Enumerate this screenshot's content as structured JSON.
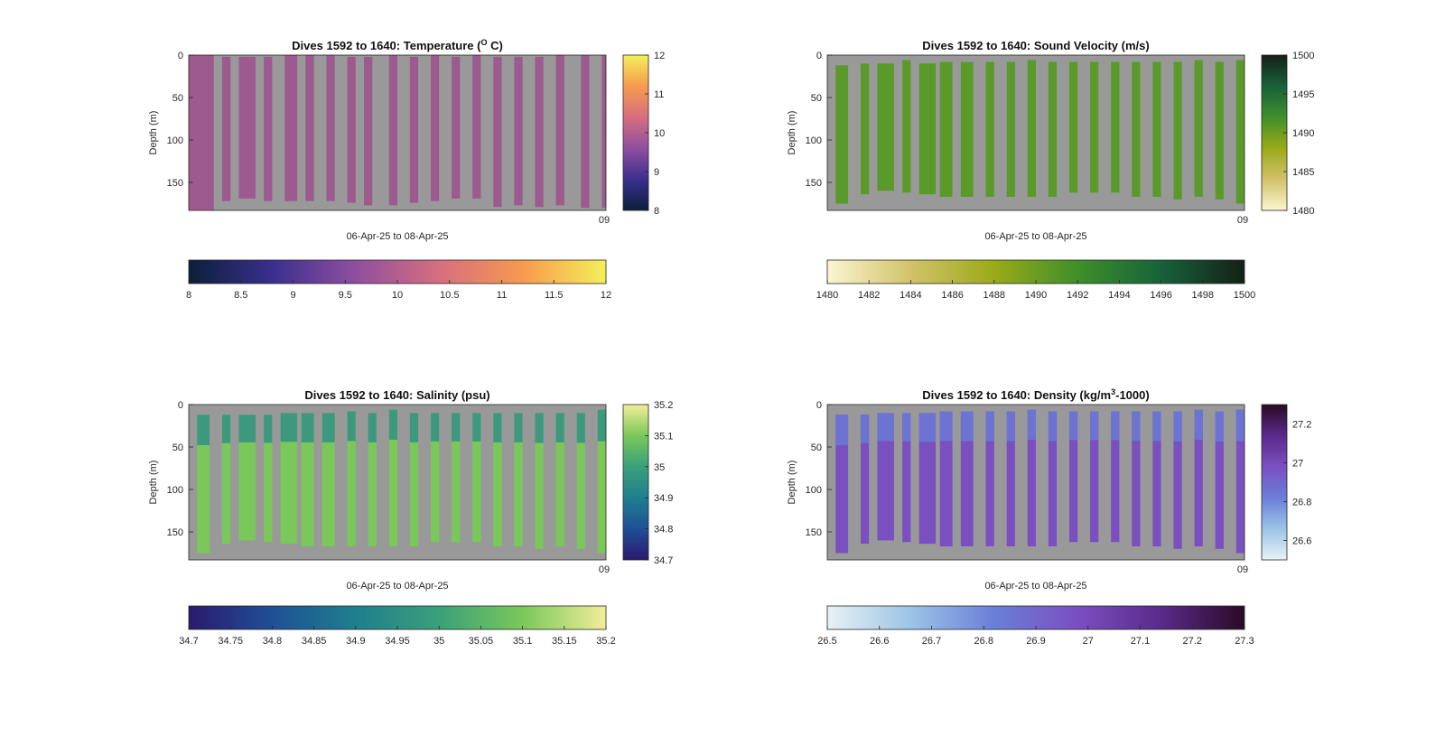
{
  "chart_data": [
    {
      "type": "heatmap",
      "title": {
        "main": "Dives 1592 to 1640: Temperature (",
        "sup": "O",
        "tail": " C)"
      },
      "xlabel": "06-Apr-25 to 08-Apr-25",
      "ylabel": "Depth (m)",
      "y_ticks": [
        "0",
        "50",
        "100",
        "150"
      ],
      "ylim": [
        0,
        183
      ],
      "x_end_tick": "09",
      "background_color": "#999999",
      "profile_color": "#9c5a8e",
      "profiles": [
        {
          "x0": 0.0,
          "x1": 0.06,
          "top": 0,
          "bottom": 183
        },
        {
          "x0": 0.08,
          "x1": 0.1,
          "top": 2,
          "bottom": 172
        },
        {
          "x0": 0.12,
          "x1": 0.16,
          "top": 2,
          "bottom": 169
        },
        {
          "x0": 0.18,
          "x1": 0.2,
          "top": 2,
          "bottom": 172
        },
        {
          "x0": 0.23,
          "x1": 0.26,
          "top": 0,
          "bottom": 172
        },
        {
          "x0": 0.28,
          "x1": 0.3,
          "top": 0,
          "bottom": 172
        },
        {
          "x0": 0.33,
          "x1": 0.35,
          "top": 0,
          "bottom": 172
        },
        {
          "x0": 0.38,
          "x1": 0.4,
          "top": 2,
          "bottom": 174
        },
        {
          "x0": 0.42,
          "x1": 0.44,
          "top": 2,
          "bottom": 177
        },
        {
          "x0": 0.48,
          "x1": 0.5,
          "top": 0,
          "bottom": 177
        },
        {
          "x0": 0.53,
          "x1": 0.55,
          "top": 2,
          "bottom": 174
        },
        {
          "x0": 0.58,
          "x1": 0.6,
          "top": 0,
          "bottom": 172
        },
        {
          "x0": 0.63,
          "x1": 0.65,
          "top": 2,
          "bottom": 169
        },
        {
          "x0": 0.68,
          "x1": 0.7,
          "top": 0,
          "bottom": 169
        },
        {
          "x0": 0.73,
          "x1": 0.75,
          "top": 2,
          "bottom": 179
        },
        {
          "x0": 0.78,
          "x1": 0.8,
          "top": 2,
          "bottom": 177
        },
        {
          "x0": 0.83,
          "x1": 0.85,
          "top": 2,
          "bottom": 179
        },
        {
          "x0": 0.88,
          "x1": 0.9,
          "top": 0,
          "bottom": 177
        },
        {
          "x0": 0.94,
          "x1": 0.96,
          "top": 0,
          "bottom": 180
        },
        {
          "x0": 0.99,
          "x1": 1.0,
          "top": 0,
          "bottom": 180
        }
      ],
      "colorbar_right": {
        "min": 8,
        "max": 12,
        "ticks": [
          "8",
          "9",
          "10",
          "11",
          "12"
        ],
        "tick_values": [
          8,
          9,
          10,
          11,
          12
        ]
      },
      "colorbar_bottom": {
        "min": 8,
        "max": 12,
        "ticks": [
          "8",
          "8.5",
          "9",
          "9.5",
          "10",
          "10.5",
          "11",
          "11.5",
          "12"
        ],
        "tick_values": [
          8,
          8.5,
          9,
          9.5,
          10,
          10.5,
          11,
          11.5,
          12
        ]
      },
      "colormap": [
        "#0b1f3a",
        "#3a2f8e",
        "#8f4f9f",
        "#d66e7f",
        "#f79a4e",
        "#f4f05a"
      ]
    },
    {
      "type": "heatmap",
      "title": {
        "main": "Dives 1592 to 1640: Sound Velocity (m/s)",
        "sup": "",
        "tail": ""
      },
      "xlabel": "06-Apr-25 to 08-Apr-25",
      "ylabel": "Depth (m)",
      "y_ticks": [
        "0",
        "50",
        "100",
        "150"
      ],
      "ylim": [
        0,
        183
      ],
      "x_end_tick": "09",
      "background_color": "#999999",
      "profile_color": "#5a9a2a",
      "profiles": [
        {
          "x0": 0.02,
          "x1": 0.05,
          "top": 12,
          "bottom": 175
        },
        {
          "x0": 0.08,
          "x1": 0.1,
          "top": 10,
          "bottom": 164
        },
        {
          "x0": 0.12,
          "x1": 0.16,
          "top": 10,
          "bottom": 160
        },
        {
          "x0": 0.18,
          "x1": 0.2,
          "top": 6,
          "bottom": 162
        },
        {
          "x0": 0.22,
          "x1": 0.26,
          "top": 10,
          "bottom": 164
        },
        {
          "x0": 0.27,
          "x1": 0.3,
          "top": 8,
          "bottom": 167
        },
        {
          "x0": 0.32,
          "x1": 0.35,
          "top": 8,
          "bottom": 167
        },
        {
          "x0": 0.38,
          "x1": 0.4,
          "top": 8,
          "bottom": 167
        },
        {
          "x0": 0.43,
          "x1": 0.45,
          "top": 8,
          "bottom": 167
        },
        {
          "x0": 0.48,
          "x1": 0.5,
          "top": 6,
          "bottom": 167
        },
        {
          "x0": 0.53,
          "x1": 0.55,
          "top": 8,
          "bottom": 167
        },
        {
          "x0": 0.58,
          "x1": 0.6,
          "top": 8,
          "bottom": 162
        },
        {
          "x0": 0.63,
          "x1": 0.65,
          "top": 8,
          "bottom": 162
        },
        {
          "x0": 0.68,
          "x1": 0.7,
          "top": 8,
          "bottom": 162
        },
        {
          "x0": 0.73,
          "x1": 0.75,
          "top": 8,
          "bottom": 167
        },
        {
          "x0": 0.78,
          "x1": 0.8,
          "top": 8,
          "bottom": 167
        },
        {
          "x0": 0.83,
          "x1": 0.85,
          "top": 8,
          "bottom": 170
        },
        {
          "x0": 0.88,
          "x1": 0.9,
          "top": 6,
          "bottom": 167
        },
        {
          "x0": 0.93,
          "x1": 0.95,
          "top": 8,
          "bottom": 170
        },
        {
          "x0": 0.98,
          "x1": 1.0,
          "top": 6,
          "bottom": 175
        }
      ],
      "colorbar_right": {
        "min": 1480,
        "max": 1500,
        "ticks": [
          "1480",
          "1485",
          "1490",
          "1495",
          "1500"
        ],
        "tick_values": [
          1480,
          1485,
          1490,
          1495,
          1500
        ]
      },
      "colorbar_bottom": {
        "min": 1480,
        "max": 1500,
        "ticks": [
          "1480",
          "1482",
          "1484",
          "1486",
          "1488",
          "1490",
          "1492",
          "1494",
          "1496",
          "1498",
          "1500"
        ],
        "tick_values": [
          1480,
          1482,
          1484,
          1486,
          1488,
          1490,
          1492,
          1494,
          1496,
          1498,
          1500
        ]
      },
      "colormap": [
        "#fbf5d2",
        "#d2c26a",
        "#9aaa18",
        "#3f8f2a",
        "#17623a",
        "#142016"
      ]
    },
    {
      "type": "heatmap",
      "title": {
        "main": "Dives 1592 to 1640: Salinity (psu)",
        "sup": "",
        "tail": ""
      },
      "xlabel": "06-Apr-25 to 08-Apr-25",
      "ylabel": "Depth (m)",
      "y_ticks": [
        "0",
        "50",
        "100",
        "150"
      ],
      "ylim": [
        0,
        183
      ],
      "x_end_tick": "09",
      "background_color": "#999999",
      "profile_color": "#7ac85a",
      "profile_top_color": "#2a8a8a",
      "profiles": [
        {
          "x0": 0.02,
          "x1": 0.05,
          "top": 12,
          "bottom": 175
        },
        {
          "x0": 0.08,
          "x1": 0.1,
          "top": 12,
          "bottom": 164
        },
        {
          "x0": 0.12,
          "x1": 0.16,
          "top": 12,
          "bottom": 160
        },
        {
          "x0": 0.18,
          "x1": 0.2,
          "top": 12,
          "bottom": 162
        },
        {
          "x0": 0.22,
          "x1": 0.26,
          "top": 10,
          "bottom": 164
        },
        {
          "x0": 0.27,
          "x1": 0.3,
          "top": 10,
          "bottom": 167
        },
        {
          "x0": 0.32,
          "x1": 0.35,
          "top": 10,
          "bottom": 167
        },
        {
          "x0": 0.38,
          "x1": 0.4,
          "top": 8,
          "bottom": 167
        },
        {
          "x0": 0.43,
          "x1": 0.45,
          "top": 10,
          "bottom": 167
        },
        {
          "x0": 0.48,
          "x1": 0.5,
          "top": 6,
          "bottom": 167
        },
        {
          "x0": 0.53,
          "x1": 0.55,
          "top": 10,
          "bottom": 167
        },
        {
          "x0": 0.58,
          "x1": 0.6,
          "top": 10,
          "bottom": 162
        },
        {
          "x0": 0.63,
          "x1": 0.65,
          "top": 10,
          "bottom": 162
        },
        {
          "x0": 0.68,
          "x1": 0.7,
          "top": 10,
          "bottom": 162
        },
        {
          "x0": 0.73,
          "x1": 0.75,
          "top": 10,
          "bottom": 167
        },
        {
          "x0": 0.78,
          "x1": 0.8,
          "top": 10,
          "bottom": 167
        },
        {
          "x0": 0.83,
          "x1": 0.85,
          "top": 10,
          "bottom": 170
        },
        {
          "x0": 0.88,
          "x1": 0.9,
          "top": 10,
          "bottom": 167
        },
        {
          "x0": 0.93,
          "x1": 0.95,
          "top": 10,
          "bottom": 170
        },
        {
          "x0": 0.98,
          "x1": 1.0,
          "top": 6,
          "bottom": 175
        }
      ],
      "colorbar_right": {
        "min": 34.7,
        "max": 35.2,
        "ticks": [
          "34.7",
          "34.8",
          "34.9",
          "35",
          "35.1",
          "35.2"
        ],
        "tick_values": [
          34.7,
          34.8,
          34.9,
          35.0,
          35.1,
          35.2
        ]
      },
      "colorbar_bottom": {
        "min": 34.7,
        "max": 35.2,
        "ticks": [
          "34.7",
          "34.75",
          "34.8",
          "34.85",
          "34.9",
          "34.95",
          "35",
          "35.05",
          "35.1",
          "35.15",
          "35.2"
        ],
        "tick_values": [
          34.7,
          34.75,
          34.8,
          34.85,
          34.9,
          34.95,
          35.0,
          35.05,
          35.1,
          35.15,
          35.2
        ]
      },
      "colormap": [
        "#2a1a6e",
        "#1f4f96",
        "#1f7f8e",
        "#3aa07a",
        "#7ac85a",
        "#f2ee98"
      ]
    },
    {
      "type": "heatmap",
      "title": {
        "main": "Dives 1592 to 1640: Density (kg/m",
        "sup": "3",
        "tail": "-1000)"
      },
      "xlabel": "06-Apr-25 to 08-Apr-25",
      "ylabel": "Depth (m)",
      "y_ticks": [
        "0",
        "50",
        "100",
        "150"
      ],
      "ylim": [
        0,
        183
      ],
      "x_end_tick": "09",
      "background_color": "#999999",
      "profile_color": "#7a4fc0",
      "profile_top_color": "#6a7fd8",
      "profiles": [
        {
          "x0": 0.02,
          "x1": 0.05,
          "top": 12,
          "bottom": 175
        },
        {
          "x0": 0.08,
          "x1": 0.1,
          "top": 12,
          "bottom": 164
        },
        {
          "x0": 0.12,
          "x1": 0.16,
          "top": 10,
          "bottom": 160
        },
        {
          "x0": 0.18,
          "x1": 0.2,
          "top": 10,
          "bottom": 162
        },
        {
          "x0": 0.22,
          "x1": 0.26,
          "top": 10,
          "bottom": 164
        },
        {
          "x0": 0.27,
          "x1": 0.3,
          "top": 8,
          "bottom": 167
        },
        {
          "x0": 0.32,
          "x1": 0.35,
          "top": 8,
          "bottom": 167
        },
        {
          "x0": 0.38,
          "x1": 0.4,
          "top": 8,
          "bottom": 167
        },
        {
          "x0": 0.43,
          "x1": 0.45,
          "top": 8,
          "bottom": 167
        },
        {
          "x0": 0.48,
          "x1": 0.5,
          "top": 6,
          "bottom": 167
        },
        {
          "x0": 0.53,
          "x1": 0.55,
          "top": 8,
          "bottom": 167
        },
        {
          "x0": 0.58,
          "x1": 0.6,
          "top": 8,
          "bottom": 162
        },
        {
          "x0": 0.63,
          "x1": 0.65,
          "top": 8,
          "bottom": 162
        },
        {
          "x0": 0.68,
          "x1": 0.7,
          "top": 8,
          "bottom": 162
        },
        {
          "x0": 0.73,
          "x1": 0.75,
          "top": 8,
          "bottom": 167
        },
        {
          "x0": 0.78,
          "x1": 0.8,
          "top": 8,
          "bottom": 167
        },
        {
          "x0": 0.83,
          "x1": 0.85,
          "top": 8,
          "bottom": 170
        },
        {
          "x0": 0.88,
          "x1": 0.9,
          "top": 6,
          "bottom": 167
        },
        {
          "x0": 0.93,
          "x1": 0.95,
          "top": 8,
          "bottom": 170
        },
        {
          "x0": 0.98,
          "x1": 1.0,
          "top": 6,
          "bottom": 175
        }
      ],
      "colorbar_right": {
        "min": 26.5,
        "max": 27.3,
        "ticks": [
          "26.6",
          "26.8",
          "27",
          "27.2"
        ],
        "tick_values": [
          26.6,
          26.8,
          27.0,
          27.2
        ]
      },
      "colorbar_bottom": {
        "min": 26.5,
        "max": 27.3,
        "ticks": [
          "26.5",
          "26.6",
          "26.7",
          "26.8",
          "26.9",
          "27",
          "27.1",
          "27.2",
          "27.3"
        ],
        "tick_values": [
          26.5,
          26.6,
          26.7,
          26.8,
          26.9,
          27.0,
          27.1,
          27.2,
          27.3
        ]
      },
      "colormap": [
        "#e8f2f4",
        "#9cc4e6",
        "#6a7fd8",
        "#7a4fc0",
        "#5a2a8a",
        "#2a0a26"
      ]
    }
  ]
}
